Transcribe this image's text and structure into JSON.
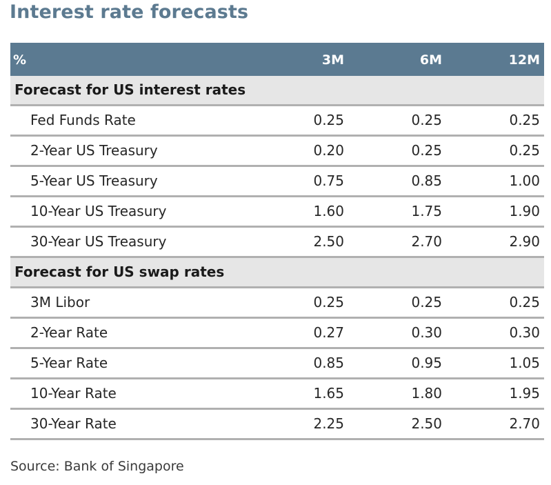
{
  "title": "Interest rate forecasts",
  "table": {
    "header": {
      "unit": "%",
      "col_3m": "3M",
      "col_6m": "6M",
      "col_12m": "12M"
    },
    "sections": [
      {
        "title": "Forecast for US interest rates",
        "rows": [
          {
            "label": "Fed Funds Rate",
            "v3m": "0.25",
            "v6m": "0.25",
            "v12m": "0.25"
          },
          {
            "label": "2-Year US Treasury",
            "v3m": "0.20",
            "v6m": "0.25",
            "v12m": "0.25"
          },
          {
            "label": "5-Year US Treasury",
            "v3m": "0.75",
            "v6m": "0.85",
            "v12m": "1.00"
          },
          {
            "label": "10-Year US Treasury",
            "v3m": "1.60",
            "v6m": "1.75",
            "v12m": "1.90"
          },
          {
            "label": "30-Year US Treasury",
            "v3m": "2.50",
            "v6m": "2.70",
            "v12m": "2.90"
          }
        ]
      },
      {
        "title": "Forecast for US swap rates",
        "rows": [
          {
            "label": "3M Libor",
            "v3m": "0.25",
            "v6m": "0.25",
            "v12m": "0.25"
          },
          {
            "label": "2-Year Rate",
            "v3m": "0.27",
            "v6m": "0.30",
            "v12m": "0.30"
          },
          {
            "label": "5-Year Rate",
            "v3m": "0.85",
            "v6m": "0.95",
            "v12m": "1.05"
          },
          {
            "label": "10-Year Rate",
            "v3m": "1.65",
            "v6m": "1.80",
            "v12m": "1.95"
          },
          {
            "label": "30-Year Rate",
            "v3m": "2.25",
            "v6m": "2.50",
            "v12m": "2.70"
          }
        ]
      }
    ]
  },
  "source": "Source: Bank of Singapore",
  "colors": {
    "title": "#5c7a90",
    "header_bg": "#5b7a91",
    "section_bg": "#e6e6e6",
    "row_border": "#b0b0b0"
  }
}
